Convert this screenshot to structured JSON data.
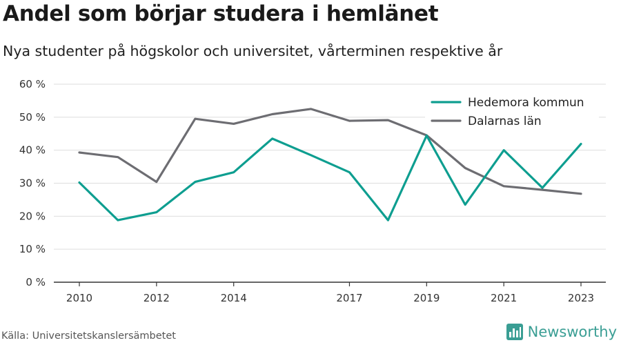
{
  "header": {
    "title": "Andel som börjar studera i hemlänet",
    "subtitle": "Nya studenter på högskolor och universitet, vårterminen respektive år"
  },
  "footer": {
    "source": "Källa: Universitetskanslersämbetet",
    "brand": "Newsworthy"
  },
  "colors": {
    "hedemora": "#0e9e90",
    "dalarna": "#6d6d72",
    "grid": "#dddddd",
    "axis": "#333333",
    "brand": "#3a9e94"
  },
  "chart_data": {
    "type": "line",
    "x": [
      2010,
      2011,
      2012,
      2013,
      2014,
      2015,
      2016,
      2017,
      2018,
      2019,
      2020,
      2021,
      2022,
      2023
    ],
    "x_tick_labels": [
      "2010",
      "2012",
      "2014",
      "2017",
      "2019",
      "2021",
      "2023"
    ],
    "x_tick_values": [
      2010,
      2012,
      2014,
      2017,
      2019,
      2021,
      2023
    ],
    "y_tick_labels": [
      "0 %",
      "10 %",
      "20 %",
      "30 %",
      "40 %",
      "50 %",
      "60 %"
    ],
    "y_tick_values": [
      0,
      10,
      20,
      30,
      40,
      50,
      60
    ],
    "ylim": [
      0,
      60
    ],
    "xlim": [
      2010,
      2023
    ],
    "grid": true,
    "legend_position": "top-right",
    "series": [
      {
        "name": "Hedemora kommun",
        "color": "#0e9e90",
        "values": [
          30.2,
          18.8,
          21.2,
          30.4,
          33.3,
          43.5,
          38.5,
          33.3,
          18.8,
          44.4,
          23.5,
          40.0,
          28.6,
          41.9
        ]
      },
      {
        "name": "Dalarnas län",
        "color": "#6d6d72",
        "values": [
          39.3,
          37.9,
          30.4,
          49.5,
          48.0,
          50.9,
          52.5,
          48.9,
          49.1,
          44.5,
          34.6,
          29.1,
          28.0,
          26.8
        ]
      }
    ]
  }
}
